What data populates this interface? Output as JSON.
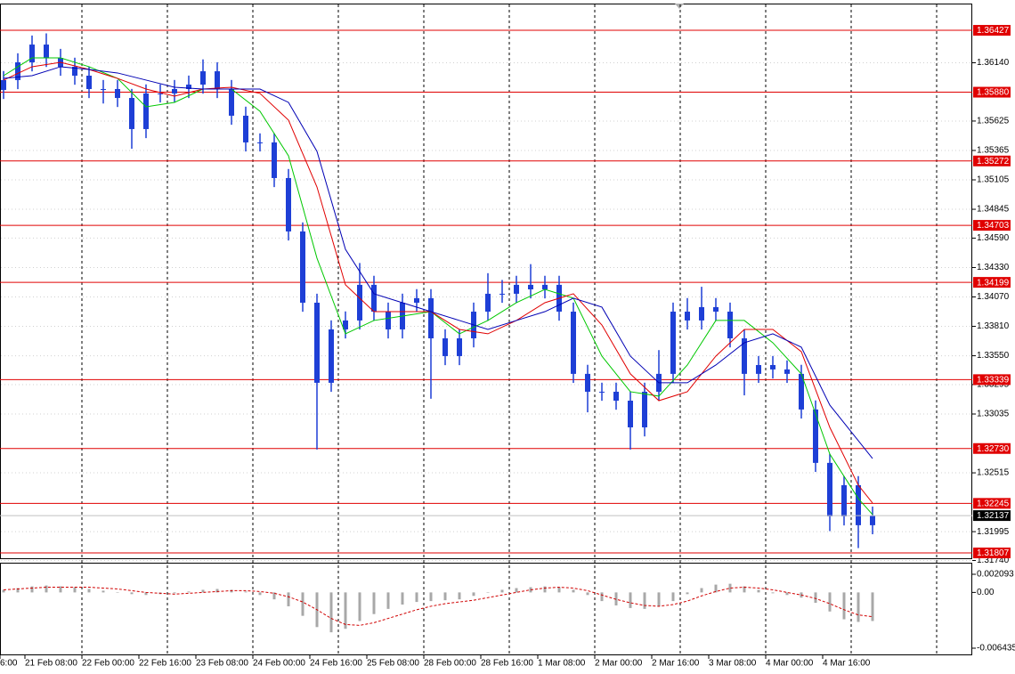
{
  "chart_data": {
    "type": "candlestick",
    "color": "#1e3fd6",
    "grid": true,
    "ylim": [
      1.31752,
      1.36695
    ],
    "yticks": [
      {
        "value": 1.3614,
        "label": "1.36140"
      },
      1.35625,
      1.35365,
      1.35105,
      1.34845,
      {
        "value": 1.3459,
        "label": "1.34590"
      },
      {
        "value": 1.3433,
        "label": "1.34330"
      },
      {
        "value": 1.3407,
        "label": "1.34070"
      },
      {
        "value": 1.3381,
        "label": "1.33810"
      },
      {
        "value": 1.3355,
        "label": "1.33550"
      },
      1.33295,
      1.33035,
      1.32515,
      1.31995,
      {
        "value": 1.3174,
        "label": "1.31740"
      }
    ],
    "level_color": "#e00000",
    "levels": [
      1.36427,
      {
        "value": 1.3588,
        "label": "1.35880"
      },
      1.35272,
      1.34703,
      1.34199,
      1.33339,
      {
        "value": 1.3273,
        "label": "1.32730"
      },
      1.32245,
      1.31807
    ],
    "time_labels": [
      "6:00",
      "21 Feb 08:00",
      "22 Feb 00:00",
      "22 Feb 16:00",
      "23 Feb 08:00",
      "24 Feb 00:00",
      "24 Feb 16:00",
      "25 Feb 08:00",
      "28 Feb 00:00",
      "28 Feb 16:00",
      "1 Mar 08:00",
      "2 Mar 00:00",
      "2 Mar 16:00",
      "3 Mar 08:00",
      "4 Mar 00:00",
      "4 Mar 16:00"
    ],
    "bars": [
      [
        1.359,
        1.36067,
        1.3582,
        1.35987
      ],
      [
        1.35987,
        1.36224,
        1.35907,
        1.36144
      ],
      [
        1.36144,
        1.36381,
        1.36064,
        1.36301
      ],
      [
        1.36301,
        1.364,
        1.36103,
        1.36183
      ],
      [
        1.36183,
        1.36263,
        1.36025,
        1.36105
      ],
      [
        1.36105,
        1.36185,
        1.35946,
        1.36026
      ],
      [
        1.36026,
        1.36106,
        1.35828,
        1.35908
      ],
      [
        1.35908,
        1.35988,
        1.3578,
        1.35908
      ],
      [
        1.35908,
        1.35988,
        1.35749,
        1.35829
      ],
      [
        1.35829,
        1.35909,
        1.3538,
        1.35554
      ],
      [
        1.35554,
        1.35949,
        1.35474,
        1.35869
      ],
      [
        1.35869,
        1.35949,
        1.35789,
        1.35869
      ],
      [
        1.35869,
        1.35988,
        1.35789,
        1.35908
      ],
      [
        1.35908,
        1.36027,
        1.35828,
        1.35947
      ],
      [
        1.35947,
        1.3617,
        1.35867,
        1.36065
      ],
      [
        1.36065,
        1.36145,
        1.35828,
        1.35908
      ],
      [
        1.35908,
        1.35988,
        1.35592,
        1.35672
      ],
      [
        1.35672,
        1.35752,
        1.35356,
        1.35436
      ],
      [
        1.35436,
        1.35516,
        1.35356,
        1.35436
      ],
      [
        1.35436,
        1.35516,
        1.35041,
        1.35121
      ],
      [
        1.35121,
        1.35201,
        1.34569,
        1.34649
      ],
      [
        1.34649,
        1.34729,
        1.33939,
        1.34019
      ],
      [
        1.34019,
        1.34099,
        1.32721,
        1.33311
      ],
      [
        1.33311,
        1.33863,
        1.33231,
        1.33783
      ],
      [
        1.33783,
        1.33942,
        1.33703,
        1.33862
      ],
      [
        1.33862,
        1.3437,
        1.33782,
        1.34177
      ],
      [
        1.34177,
        1.34257,
        1.3386,
        1.3394
      ],
      [
        1.3394,
        1.3402,
        1.33703,
        1.33783
      ],
      [
        1.33783,
        1.34099,
        1.33703,
        1.34019
      ],
      [
        1.34019,
        1.34139,
        1.33939,
        1.34059
      ],
      [
        1.34059,
        1.34139,
        1.3317,
        1.33704
      ],
      [
        1.33704,
        1.33784,
        1.33467,
        1.33547
      ],
      [
        1.33547,
        1.33784,
        1.33467,
        1.33704
      ],
      [
        1.33704,
        1.3402,
        1.33624,
        1.3394
      ],
      [
        1.3394,
        1.3428,
        1.3386,
        1.34098
      ],
      [
        1.34098,
        1.3422,
        1.34018,
        1.34098
      ],
      [
        1.34098,
        1.34257,
        1.34018,
        1.34177
      ],
      [
        1.34177,
        1.3436,
        1.34057,
        1.34137
      ],
      [
        1.34137,
        1.34257,
        1.34057,
        1.34177
      ],
      [
        1.34177,
        1.34257,
        1.3386,
        1.3394
      ],
      [
        1.3394,
        1.3402,
        1.3331,
        1.3339
      ],
      [
        1.3339,
        1.3347,
        1.3305,
        1.33232
      ],
      [
        1.33232,
        1.33312,
        1.33152,
        1.33232
      ],
      [
        1.33232,
        1.33312,
        1.33073,
        1.33153
      ],
      [
        1.33153,
        1.33233,
        1.32721,
        1.32917
      ],
      [
        1.32917,
        1.33312,
        1.32837,
        1.33232
      ],
      [
        1.33232,
        1.336,
        1.33152,
        1.3339
      ],
      [
        1.3339,
        1.3402,
        1.3331,
        1.3394
      ],
      [
        1.3394,
        1.3406,
        1.33782,
        1.33862
      ],
      [
        1.33862,
        1.3416,
        1.33782,
        1.3398
      ],
      [
        1.3398,
        1.3406,
        1.3386,
        1.3394
      ],
      [
        1.3394,
        1.3402,
        1.33624,
        1.33704
      ],
      [
        1.33704,
        1.33784,
        1.332,
        1.3339
      ],
      [
        1.3339,
        1.33548,
        1.3331,
        1.33468
      ],
      [
        1.33468,
        1.33548,
        1.33349,
        1.33429
      ],
      [
        1.33429,
        1.33509,
        1.3331,
        1.3339
      ],
      [
        1.3339,
        1.3347,
        1.32995,
        1.33075
      ],
      [
        1.33075,
        1.33155,
        1.32523,
        1.32603
      ],
      [
        1.32603,
        1.32683,
        1.32,
        1.3213
      ],
      [
        1.3213,
        1.32486,
        1.3205,
        1.32406
      ],
      [
        1.32406,
        1.32486,
        1.3185,
        1.32052
      ],
      [
        1.32052,
        1.32217,
        1.31972,
        1.32137
      ]
    ],
    "ma_index": [
      0,
      2,
      4,
      6,
      8,
      10,
      12,
      14,
      16,
      18,
      20,
      22,
      24,
      26,
      28,
      30,
      32,
      34,
      36,
      38,
      40,
      42,
      44,
      46,
      48,
      50,
      52,
      54,
      56,
      58,
      60,
      61
    ],
    "moving_averages": [
      {
        "color": "#00c800",
        "values": [
          1.36026,
          1.36183,
          1.36183,
          1.36105,
          1.36002,
          1.35751,
          1.3579,
          1.35908,
          1.35908,
          1.35711,
          1.35318,
          1.34413,
          1.33744,
          1.33862,
          1.33901,
          1.3394,
          1.33744,
          1.33862,
          1.34019,
          1.34137,
          1.34059,
          1.33547,
          1.33232,
          1.33193,
          1.33468,
          1.33862,
          1.33862,
          1.33665,
          1.3339,
          1.32681,
          1.32288,
          1.32146
        ]
      },
      {
        "color": "#e00000",
        "values": [
          1.35987,
          1.36105,
          1.36144,
          1.36081,
          1.36002,
          1.35908,
          1.35845,
          1.35908,
          1.35924,
          1.35869,
          1.35633,
          1.35042,
          1.34177,
          1.3394,
          1.3394,
          1.3394,
          1.33783,
          1.33744,
          1.33862,
          1.34019,
          1.34098,
          1.33822,
          1.3339,
          1.33153,
          1.33232,
          1.33547,
          1.33783,
          1.33783,
          1.33586,
          1.32917,
          1.32406,
          1.32248
        ]
      },
      {
        "color": "#0000b4",
        "values": [
          1.36002,
          1.36026,
          1.36105,
          1.36081,
          1.3605,
          1.35987,
          1.35924,
          1.35908,
          1.35908,
          1.35908,
          1.3579,
          1.35357,
          1.34491,
          1.34098,
          1.34019,
          1.3394,
          1.33862,
          1.33783,
          1.33862,
          1.3394,
          1.34059,
          1.3398,
          1.33547,
          1.33311,
          1.33311,
          1.33468,
          1.33665,
          1.33744,
          1.33626,
          1.33114,
          1.32799,
          1.32642
        ]
      }
    ],
    "macd": {
      "type": "histogram",
      "color": "#a8a8a8",
      "signal_color": "#d00000",
      "ylim": [
        -0.006435,
        0.002093
      ],
      "yticks": [
        0.002093,
        {
          "value": 0,
          "label": "0.00"
        },
        -0.006435
      ],
      "values": [
        0.0003,
        0.0005,
        0.0007,
        0.0008,
        0.0007,
        0.0006,
        0.0004,
        0.0002,
        0.0,
        -0.0002,
        -0.0003,
        -0.0002,
        -0.0001,
        0.0001,
        0.0003,
        0.0004,
        0.0003,
        0.0001,
        -0.0003,
        -0.0008,
        -0.0016,
        -0.0027,
        -0.004,
        -0.0046,
        -0.0042,
        -0.0033,
        -0.0025,
        -0.0019,
        -0.0014,
        -0.0011,
        -0.001,
        -0.0009,
        -0.0008,
        -0.0004,
        0.0,
        0.0003,
        0.0005,
        0.0006,
        0.0007,
        0.0006,
        0.0003,
        -0.0003,
        -0.001,
        -0.0015,
        -0.0018,
        -0.0019,
        -0.0016,
        -0.001,
        -0.0002,
        0.0005,
        0.0009,
        0.001,
        0.0007,
        0.0003,
        -0.0001,
        -0.0003,
        -0.0006,
        -0.0012,
        -0.0022,
        -0.0031,
        -0.0034,
        -0.0033
      ],
      "signal": [
        0.0003,
        0.0004,
        0.0005,
        0.0006,
        0.0006,
        0.0006,
        0.0006,
        0.0005,
        0.0004,
        0.0002,
        0.0,
        -0.0001,
        -0.0002,
        -0.0001,
        0.0,
        0.0001,
        0.0002,
        0.0002,
        0.0001,
        -0.0001,
        -0.0005,
        -0.0011,
        -0.002,
        -0.003,
        -0.0037,
        -0.0038,
        -0.0035,
        -0.003,
        -0.0025,
        -0.002,
        -0.0016,
        -0.0013,
        -0.0011,
        -0.0009,
        -0.0006,
        -0.0003,
        0.0,
        0.0003,
        0.0005,
        0.0006,
        0.0005,
        0.0002,
        -0.0003,
        -0.0008,
        -0.0012,
        -0.0015,
        -0.0016,
        -0.0014,
        -0.001,
        -0.0004,
        0.0001,
        0.0005,
        0.0006,
        0.0005,
        0.0003,
        0.0,
        -0.0003,
        -0.0007,
        -0.0013,
        -0.002,
        -0.0026,
        -0.0028
      ]
    }
  }
}
